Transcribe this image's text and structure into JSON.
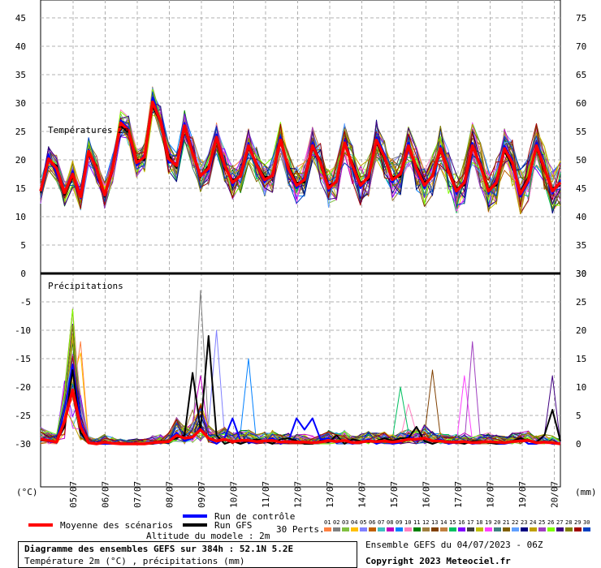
{
  "chart_data": {
    "type": "line",
    "dates": [
      "05/07",
      "06/07",
      "07/07",
      "08/07",
      "09/07",
      "10/07",
      "11/07",
      "12/07",
      "13/07",
      "14/07",
      "15/07",
      "16/07",
      "17/07",
      "18/07",
      "19/07",
      "20/07"
    ],
    "temperature_panel": {
      "label": "Températures 2m",
      "left_ticks": [
        0,
        5,
        10,
        15,
        20,
        25,
        30,
        35,
        40,
        45
      ],
      "right_ticks": [
        30,
        35,
        40,
        45,
        50,
        55,
        60,
        65,
        70,
        75
      ],
      "ylim": [
        0,
        45
      ],
      "mean": [
        14.5,
        20.2,
        18.5,
        14.2,
        17.5,
        13.5,
        21.5,
        18.5,
        13.8,
        18.5,
        26.5,
        25.2,
        19.5,
        20.5,
        30.2,
        26.8,
        20.2,
        19.0,
        26.0,
        21.2,
        17.2,
        18.5,
        24.0,
        19.0,
        16.0,
        17.2,
        22.5,
        19.2,
        16.5,
        17.2,
        23.5,
        18.5,
        15.5,
        16.5,
        22.5,
        19.5,
        15.0,
        16.2,
        23.0,
        19.0,
        15.5,
        17.0,
        23.5,
        20.5,
        16.5,
        17.5,
        22.5,
        18.5,
        15.5,
        17.2,
        22.0,
        18.0,
        14.5,
        16.0,
        22.5,
        19.0,
        14.5,
        16.0,
        22.0,
        19.5,
        14.0,
        16.5,
        22.5,
        18.5,
        14.5,
        16.0
      ],
      "control": [
        14.8,
        21.0,
        17.5,
        14.5,
        18.0,
        13.2,
        21.8,
        18.0,
        14.0,
        18.8,
        27.0,
        25.5,
        19.0,
        21.0,
        31.0,
        27.0,
        19.5,
        19.5,
        26.5,
        21.5,
        17.5,
        18.0,
        24.5,
        19.5,
        15.5,
        17.5,
        23.0,
        19.0,
        16.0,
        17.5,
        24.0,
        18.0,
        15.0,
        17.0,
        23.0,
        19.5,
        14.5,
        16.5,
        23.5,
        19.0,
        15.0,
        17.5,
        24.0,
        21.0,
        16.0,
        18.0,
        23.0,
        18.0,
        15.0,
        17.5,
        22.5,
        18.0,
        14.0,
        16.5,
        23.0,
        19.0,
        14.0,
        16.5,
        22.5,
        20.0,
        13.5,
        16.0,
        23.0,
        18.5,
        14.0,
        16.5
      ],
      "gfs": [
        14.2,
        19.8,
        19.0,
        13.8,
        17.0,
        14.0,
        21.0,
        19.0,
        13.5,
        18.0,
        26.0,
        24.8,
        20.0,
        20.0,
        29.5,
        26.5,
        21.0,
        18.5,
        25.5,
        21.0,
        17.0,
        19.0,
        23.5,
        18.5,
        16.5,
        17.0,
        22.0,
        19.5,
        17.0,
        17.0,
        23.0,
        19.0,
        16.0,
        16.0,
        22.0,
        20.0,
        15.5,
        16.0,
        22.5,
        19.5,
        16.0,
        16.5,
        23.0,
        20.0,
        17.0,
        17.0,
        22.0,
        19.0,
        16.0,
        17.0,
        21.5,
        18.5,
        15.0,
        15.5,
        22.0,
        19.5,
        15.0,
        15.5,
        21.5,
        19.0,
        14.5,
        17.0,
        22.0,
        18.0,
        15.0,
        15.5
      ]
    },
    "precip_panel": {
      "label": "Précipitations",
      "left_ticks": [
        -5,
        -10,
        -15,
        -20,
        -25,
        -30
      ],
      "right_ticks": [
        0,
        5,
        10,
        15,
        20,
        25,
        30
      ],
      "left_unit": "(°C)",
      "right_unit": "(mm)",
      "ylim": [
        0,
        30
      ],
      "mean": [
        0.8,
        0.6,
        0.3,
        4.0,
        9.5,
        3.0,
        0.2,
        0.0,
        0.3,
        0.1,
        0.0,
        0.0,
        0.0,
        0.0,
        0.2,
        0.3,
        0.4,
        1.5,
        1.0,
        1.2,
        2.5,
        1.0,
        0.5,
        0.8,
        0.4,
        0.6,
        0.6,
        0.4,
        0.5,
        0.6,
        0.3,
        0.4,
        0.3,
        0.3,
        0.2,
        0.3,
        0.6,
        0.4,
        0.6,
        0.2,
        0.3,
        0.5,
        0.4,
        0.5,
        0.3,
        0.5,
        0.8,
        0.8,
        1.0,
        0.5,
        0.5,
        0.3,
        0.3,
        0.4,
        0.2,
        0.3,
        0.4,
        0.3,
        0.2,
        0.4,
        0.5,
        0.6,
        0.2,
        0.3,
        0.2,
        0.0
      ],
      "control": [
        1.0,
        0.4,
        0.2,
        6.0,
        14.0,
        4.0,
        0.1,
        0.0,
        0.0,
        0.0,
        0.0,
        0.0,
        0.0,
        0.0,
        0.0,
        0.2,
        0.5,
        2.0,
        0.5,
        1.0,
        3.0,
        0.8,
        0.0,
        1.0,
        4.5,
        0.5,
        0.3,
        0.2,
        0.5,
        1.0,
        0.0,
        0.5,
        4.5,
        2.5,
        4.5,
        0.8,
        1.0,
        0.2,
        0.5,
        0.0,
        0.3,
        0.8,
        0.0,
        0.5,
        0.0,
        0.2,
        1.5,
        0.5,
        1.0,
        0.5,
        0.8,
        0.0,
        0.3,
        0.5,
        0.0,
        0.2,
        0.5,
        0.0,
        0.0,
        0.3,
        1.0,
        0.0,
        0.0,
        0.5,
        0.0,
        0.0
      ],
      "gfs": [
        0.6,
        0.5,
        0.4,
        3.0,
        13.0,
        2.0,
        0.1,
        0.0,
        0.5,
        0.0,
        0.0,
        0.0,
        0.0,
        0.0,
        0.0,
        0.5,
        0.5,
        1.0,
        1.5,
        12.5,
        2.5,
        19.0,
        1.5,
        0.0,
        0.5,
        0.0,
        0.5,
        0.8,
        0.5,
        0.0,
        0.8,
        1.0,
        0.5,
        0.0,
        0.0,
        0.5,
        0.3,
        1.5,
        0.0,
        0.8,
        0.5,
        0.3,
        0.5,
        1.0,
        0.5,
        1.0,
        1.0,
        3.0,
        0.5,
        0.0,
        0.5,
        0.5,
        0.3,
        0.0,
        0.5,
        0.5,
        0.2,
        0.0,
        0.3,
        0.5,
        1.0,
        0.5,
        0.3,
        1.5,
        6.0,
        0.5
      ]
    },
    "legend": {
      "mean_label": "Moyenne des scénarios",
      "control_label": "Run de contrôle",
      "gfs_label": "Run GFS",
      "perts_label": "30 Perts.",
      "altitude": "Altitude du modele : 2m",
      "pert_numbers": [
        "01",
        "02",
        "03",
        "04",
        "05",
        "06",
        "07",
        "08",
        "09",
        "10",
        "11",
        "12",
        "13",
        "14",
        "15",
        "16",
        "17",
        "18",
        "19",
        "20",
        "21",
        "22",
        "23",
        "24",
        "25",
        "26",
        "27",
        "28",
        "29",
        "30"
      ],
      "pert_colors": [
        "#ff8040",
        "#808080",
        "#80c040",
        "#ffc000",
        "#8080ff",
        "#c06000",
        "#40c0c0",
        "#c000c0",
        "#0080ff",
        "#ff80c0",
        "#008000",
        "#a08040",
        "#804000",
        "#c08040",
        "#00c060",
        "#8000ff",
        "#404040",
        "#c0c000",
        "#ff40ff",
        "#408080",
        "#806000",
        "#60a0ff",
        "#000080",
        "#c0a000",
        "#a040c0",
        "#80ff00",
        "#400080",
        "#808000",
        "#a00000",
        "#0040c0"
      ],
      "mean_color": "#ff0000",
      "control_color": "#0000ff",
      "gfs_color": "#000000"
    }
  },
  "footer": {
    "title": "Diagramme des ensembles GEFS sur 384h : 52.1N 5.2E",
    "subtitle": "Température 2m (°C) , précipitations (mm)",
    "run_info": "Ensemble GEFS du 04/07/2023 - 06Z",
    "copyright": "Copyright 2023 Meteociel.fr"
  }
}
